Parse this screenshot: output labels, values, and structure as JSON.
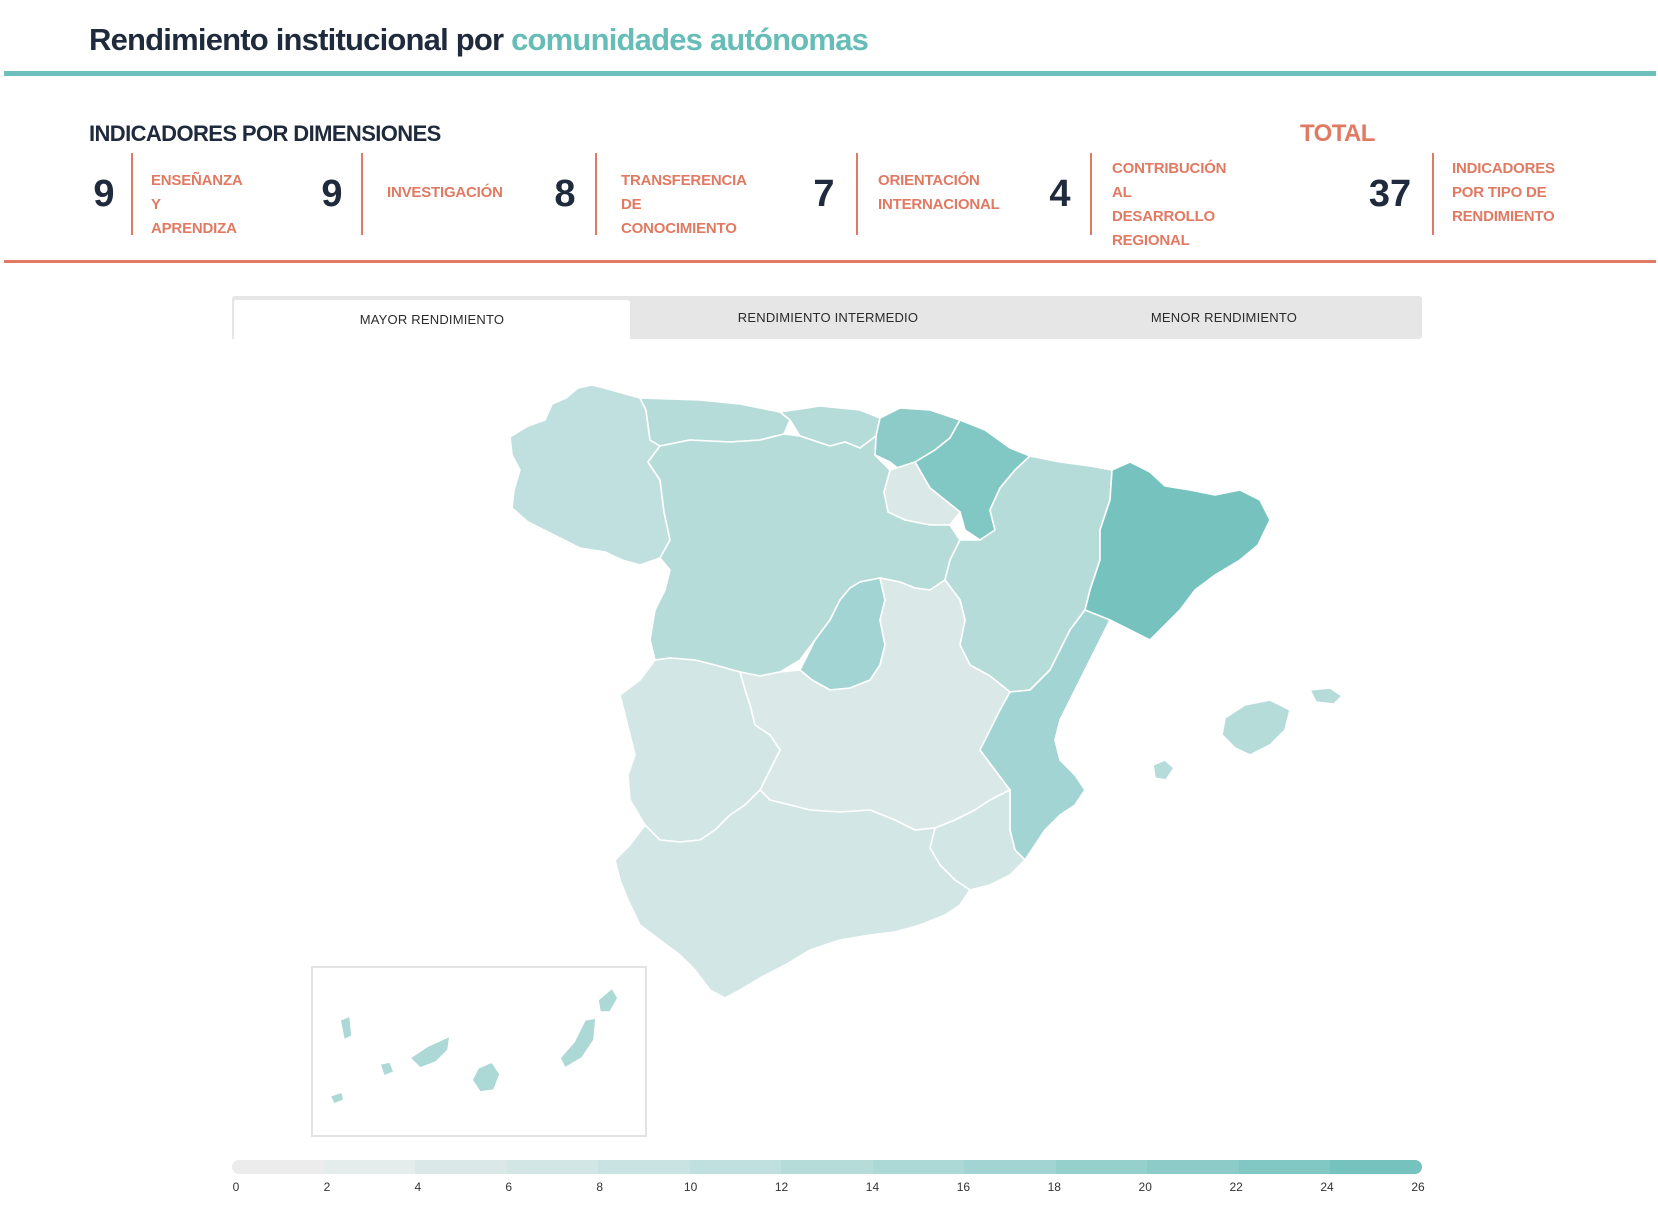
{
  "title": {
    "main": "Rendimiento institucional por",
    "accent": "comunidades autónomas"
  },
  "dimensions_heading": "INDICADORES POR DIMENSIONES",
  "total_heading": "TOTAL",
  "dimensions": [
    {
      "value": "9",
      "label_lines": [
        "ENSEÑANZA Y",
        "APRENDIZA"
      ]
    },
    {
      "value": "9",
      "label_lines": [
        "INVESTIGACIÓN"
      ]
    },
    {
      "value": "8",
      "label_lines": [
        "TRANSFERENCIA DE",
        "CONOCIMIENTO"
      ]
    },
    {
      "value": "7",
      "label_lines": [
        "ORIENTACIÓN",
        "INTERNACIONAL"
      ]
    },
    {
      "value": "4",
      "label_lines": [
        "CONTRIBUCIÓN",
        "AL DESARROLLO",
        "REGIONAL"
      ]
    }
  ],
  "total": {
    "value": "37",
    "label_lines": [
      "INDICADORES",
      "POR TIPO DE",
      "RENDIMIENTO"
    ]
  },
  "tabs": [
    {
      "label": "MAYOR RENDIMIENTO",
      "active": true
    },
    {
      "label": "RENDIMIENTO INTERMEDIO",
      "active": false
    },
    {
      "label": "MENOR RENDIMIENTO",
      "active": false
    }
  ],
  "map": {
    "regions": [
      {
        "id": "galicia",
        "value": 10
      },
      {
        "id": "asturias",
        "value": 12
      },
      {
        "id": "cantabria",
        "value": 12
      },
      {
        "id": "pais-vasco",
        "value": 22
      },
      {
        "id": "navarra",
        "value": 24
      },
      {
        "id": "la-rioja",
        "value": 5
      },
      {
        "id": "castilla-leon",
        "value": 14
      },
      {
        "id": "aragon",
        "value": 14
      },
      {
        "id": "cataluna",
        "value": 25
      },
      {
        "id": "madrid",
        "value": 18
      },
      {
        "id": "castilla-la-mancha",
        "value": 4
      },
      {
        "id": "extremadura",
        "value": 7
      },
      {
        "id": "comunidad-valenciana",
        "value": 18
      },
      {
        "id": "murcia",
        "value": 6
      },
      {
        "id": "andalucia",
        "value": 6
      },
      {
        "id": "baleares",
        "value": 12
      },
      {
        "id": "canarias",
        "value": 16
      }
    ],
    "scale_colors": [
      "#ececec",
      "#e4ecec",
      "#dae8e8",
      "#d2e6e5",
      "#c9e3e2",
      "#c0e0df",
      "#b6dcda",
      "#acd8d6",
      "#a1d4d2",
      "#96d0cd",
      "#8ccbc8",
      "#81c7c4",
      "#76c2bf"
    ]
  },
  "legend": {
    "ticks": [
      "0",
      "2",
      "4",
      "6",
      "8",
      "10",
      "12",
      "14",
      "16",
      "18",
      "20",
      "22",
      "24",
      "26"
    ]
  }
}
